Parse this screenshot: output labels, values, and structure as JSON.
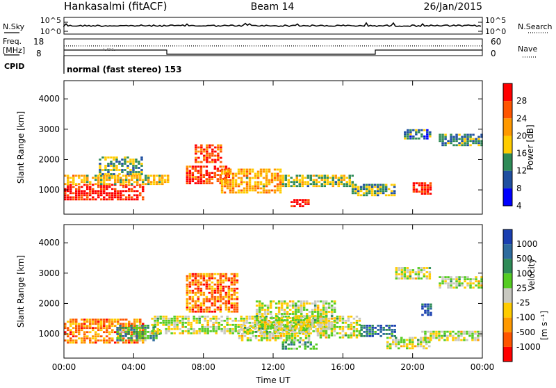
{
  "header": {
    "station": "Hankasalmi (fitACF)",
    "beam": "Beam 14",
    "date": "26/Jan/2015"
  },
  "noise_panel": {
    "left_label": "N.Sky",
    "right_label": "N.Search",
    "ticks": [
      "10^5",
      "10^0"
    ]
  },
  "freq_panel": {
    "left_label_line1": "Freq.",
    "left_label_line2": "[MHz]",
    "left_ticks": [
      "18",
      "8"
    ],
    "right_label": "Nave",
    "right_ticks": [
      "60",
      "0"
    ]
  },
  "cpid_panel": {
    "label": "CPID",
    "text": "normal (fast stereo) 153"
  },
  "chart_data": [
    {
      "type": "heatmap",
      "title": "",
      "xlabel": "Time UT",
      "ylabel": "Slant Range [km]",
      "x_ticks": [
        "00:00",
        "04:00",
        "08:00",
        "12:00",
        "16:00",
        "20:00",
        "00:00"
      ],
      "x_range_hours": [
        0,
        24
      ],
      "y_ticks": [
        1000,
        2000,
        3000,
        4000
      ],
      "ylim": [
        200,
        4600
      ],
      "colorbar": {
        "label": "Power [dB]",
        "ticks": [
          "28",
          "24",
          "20",
          "16",
          "12",
          "8",
          "4"
        ],
        "colors": [
          "#ff0000",
          "#ff5500",
          "#ff9900",
          "#ffcc00",
          "#2e8b57",
          "#1f4fa0",
          "#0000ff"
        ]
      },
      "regions": [
        {
          "t0": 0.0,
          "t1": 4.5,
          "r0": 700,
          "r1": 1200,
          "level": 0.92
        },
        {
          "t0": 0.0,
          "t1": 6.0,
          "r0": 1200,
          "r1": 1500,
          "level": 0.55
        },
        {
          "t0": 2.0,
          "t1": 4.5,
          "r0": 1500,
          "r1": 2100,
          "level": 0.4
        },
        {
          "t0": 7.0,
          "t1": 9.5,
          "r0": 1200,
          "r1": 1800,
          "level": 0.85
        },
        {
          "t0": 7.5,
          "t1": 9.0,
          "r0": 1900,
          "r1": 2500,
          "level": 0.8
        },
        {
          "t0": 9.0,
          "t1": 12.5,
          "r0": 900,
          "r1": 1700,
          "level": 0.6
        },
        {
          "t0": 12.5,
          "t1": 16.5,
          "r0": 1100,
          "r1": 1500,
          "level": 0.45
        },
        {
          "t0": 13.0,
          "t1": 14.0,
          "r0": 450,
          "r1": 700,
          "level": 0.9
        },
        {
          "t0": 16.5,
          "t1": 19.0,
          "r0": 800,
          "r1": 1200,
          "level": 0.4
        },
        {
          "t0": 20.0,
          "t1": 21.0,
          "r0": 850,
          "r1": 1250,
          "level": 0.88
        },
        {
          "t0": 21.5,
          "t1": 24.0,
          "r0": 2500,
          "r1": 2850,
          "level": 0.35
        },
        {
          "t0": 19.5,
          "t1": 21.0,
          "r0": 2700,
          "r1": 3000,
          "level": 0.3
        }
      ]
    },
    {
      "type": "heatmap",
      "title": "",
      "xlabel": "Time UT",
      "ylabel": "Slant Range [km]",
      "x_ticks": [
        "00:00",
        "04:00",
        "08:00",
        "12:00",
        "16:00",
        "20:00",
        "00:00"
      ],
      "x_range_hours": [
        0,
        24
      ],
      "y_ticks": [
        1000,
        2000,
        3000,
        4000
      ],
      "ylim": [
        200,
        4600
      ],
      "colorbar": {
        "label": "Velocity",
        "unit": "[m s⁻¹]",
        "ticks": [
          "1000",
          "500",
          "100",
          "25",
          "-25",
          "-100",
          "-500",
          "-1000"
        ],
        "colors": [
          "#1a3fb0",
          "#2e6b9e",
          "#2e8b57",
          "#55cc22",
          "#c8c8c0",
          "#ffcc00",
          "#ff9900",
          "#ff5500",
          "#ff0000"
        ]
      },
      "regions": [
        {
          "t0": 0.0,
          "t1": 4.5,
          "r0": 700,
          "r1": 1500,
          "level": 0.25
        },
        {
          "t0": 3.0,
          "t1": 5.5,
          "r0": 800,
          "r1": 1300,
          "level": 0.7
        },
        {
          "t0": 5.0,
          "t1": 15.0,
          "r0": 1000,
          "r1": 1600,
          "level": 0.5
        },
        {
          "t0": 7.0,
          "t1": 10.0,
          "r0": 1700,
          "r1": 3000,
          "level": 0.22
        },
        {
          "t0": 10.0,
          "t1": 14.0,
          "r0": 800,
          "r1": 1300,
          "level": 0.5
        },
        {
          "t0": 11.0,
          "t1": 15.5,
          "r0": 1200,
          "r1": 2100,
          "level": 0.5
        },
        {
          "t0": 12.5,
          "t1": 14.5,
          "r0": 500,
          "r1": 750,
          "level": 0.72
        },
        {
          "t0": 14.5,
          "t1": 17.0,
          "r0": 900,
          "r1": 1600,
          "level": 0.5
        },
        {
          "t0": 17.0,
          "t1": 19.0,
          "r0": 900,
          "r1": 1300,
          "level": 0.82
        },
        {
          "t0": 18.5,
          "t1": 21.0,
          "r0": 500,
          "r1": 900,
          "level": 0.5
        },
        {
          "t0": 20.5,
          "t1": 24.0,
          "r0": 800,
          "r1": 1100,
          "level": 0.5
        },
        {
          "t0": 21.5,
          "t1": 24.0,
          "r0": 2500,
          "r1": 2900,
          "level": 0.5
        },
        {
          "t0": 19.0,
          "t1": 21.0,
          "r0": 2800,
          "r1": 3200,
          "level": 0.5
        },
        {
          "t0": 20.5,
          "t1": 21.0,
          "r0": 1600,
          "r1": 2000,
          "level": 0.85
        }
      ]
    }
  ]
}
